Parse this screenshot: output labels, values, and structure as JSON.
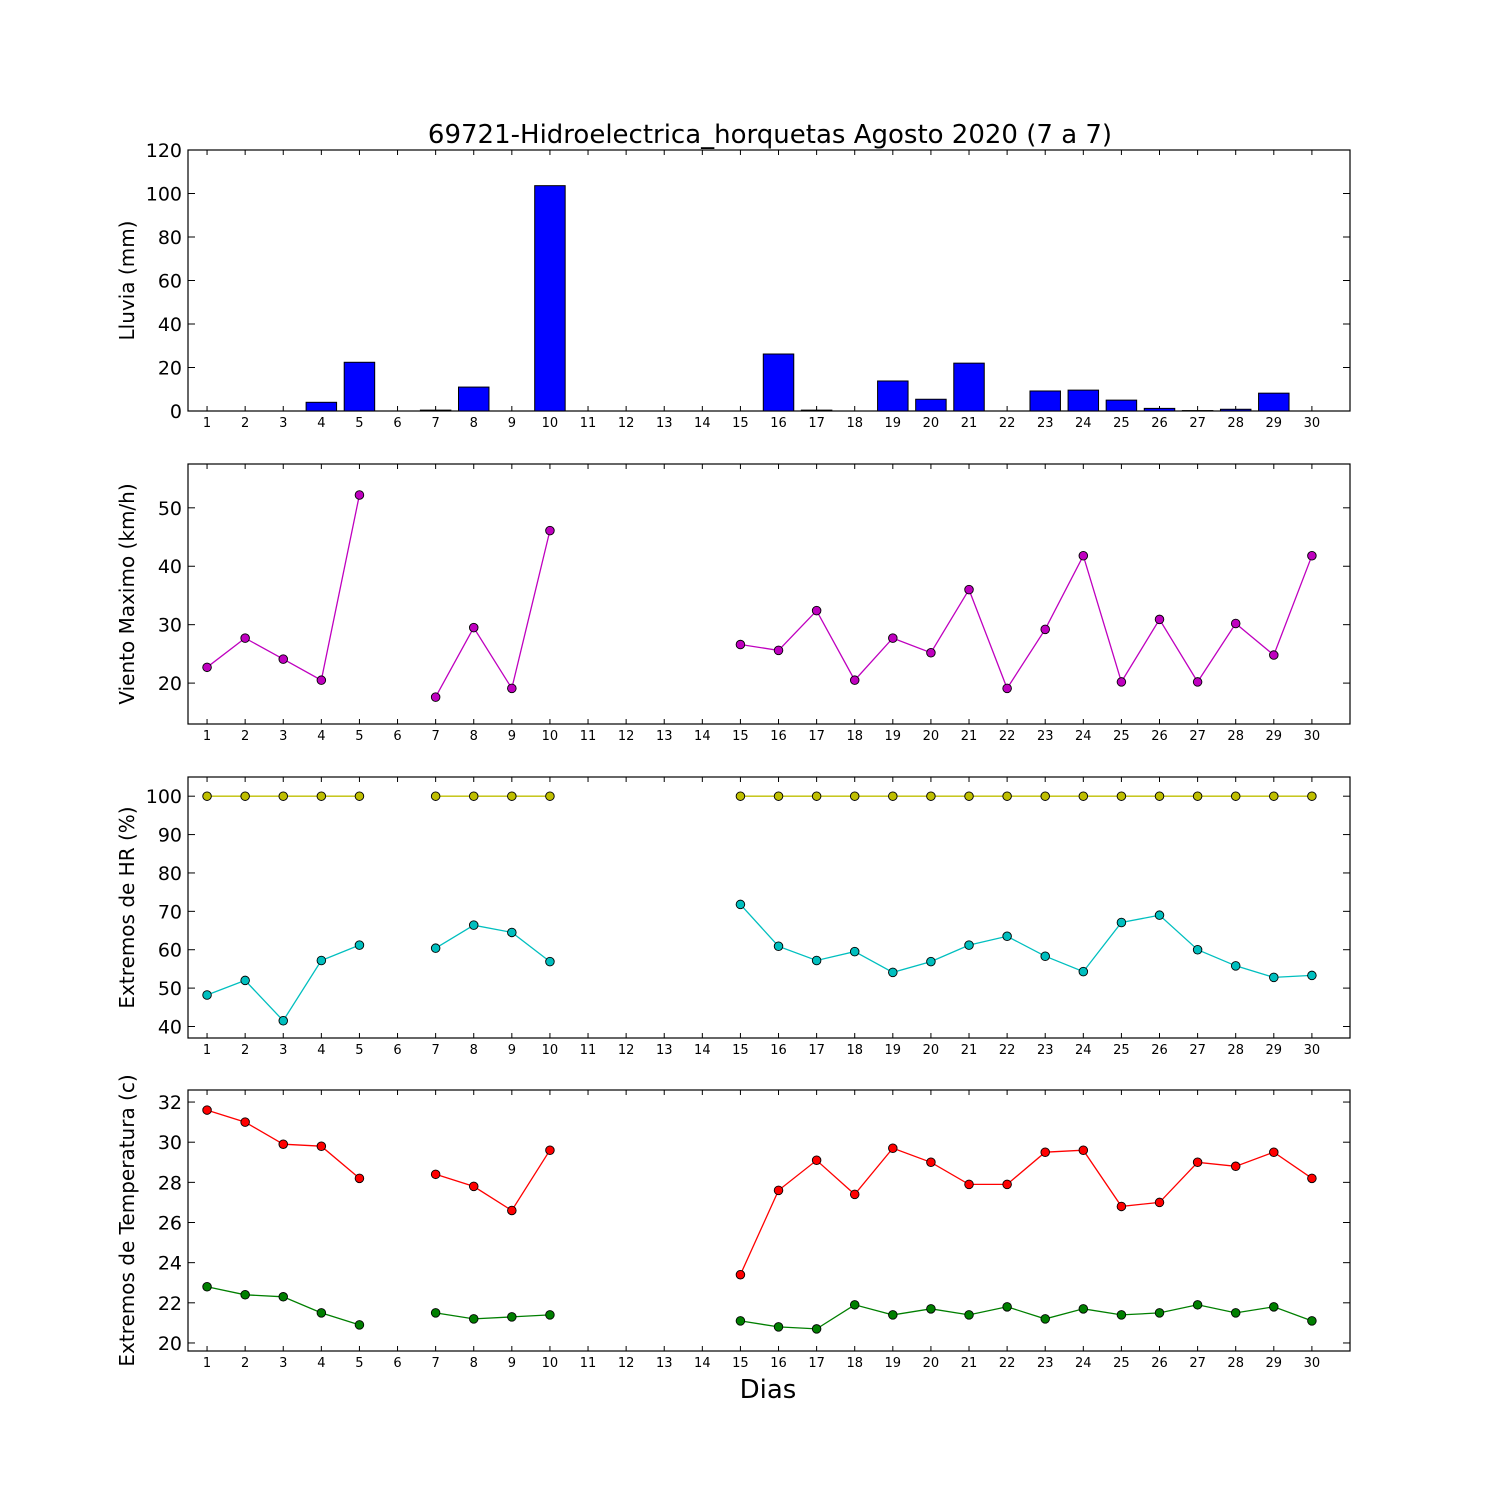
{
  "title": "69721-Hidroelectrica_horquetas Agosto 2020  (7 a 7)",
  "xlabel": "Dias",
  "x_ticks": [
    "1",
    "2",
    "3",
    "4",
    "5",
    "6",
    "7",
    "8",
    "9",
    "10",
    "11",
    "12",
    "13",
    "14",
    "15",
    "16",
    "17",
    "18",
    "19",
    "20",
    "21",
    "22",
    "23",
    "24",
    "25",
    "26",
    "27",
    "28",
    "29",
    "30"
  ],
  "chart_data": [
    {
      "type": "bar",
      "ylabel": "Lluvia (mm)",
      "ylim": [
        0,
        120
      ],
      "yticks": [
        0,
        20,
        40,
        60,
        80,
        100,
        120
      ],
      "color": "#0000ff",
      "categories": [
        1,
        2,
        3,
        4,
        5,
        6,
        7,
        8,
        9,
        10,
        11,
        12,
        13,
        14,
        15,
        16,
        17,
        18,
        19,
        20,
        21,
        22,
        23,
        24,
        25,
        26,
        27,
        28,
        29,
        30
      ],
      "values": [
        0,
        0,
        0,
        4,
        22.4,
        0,
        0.4,
        11,
        0,
        103.6,
        0,
        0,
        0,
        0,
        0,
        26.2,
        0.4,
        0,
        13.8,
        5.4,
        22,
        0,
        9.2,
        9.6,
        5,
        1.2,
        0.2,
        0.8,
        8.2,
        0
      ]
    },
    {
      "type": "line",
      "ylabel": "Viento Maximo (km/h)",
      "ylim": [
        13,
        57.5
      ],
      "yticks": [
        20,
        30,
        40,
        50
      ],
      "x": [
        1,
        2,
        3,
        4,
        5,
        6,
        7,
        8,
        9,
        10,
        11,
        12,
        13,
        14,
        15,
        16,
        17,
        18,
        19,
        20,
        21,
        22,
        23,
        24,
        25,
        26,
        27,
        28,
        29,
        30
      ],
      "series": [
        {
          "color": "#bf00bf",
          "values": [
            22.7,
            27.7,
            24.1,
            20.5,
            52.2,
            null,
            17.6,
            29.5,
            19.1,
            46.1,
            null,
            null,
            null,
            null,
            26.6,
            25.6,
            32.4,
            20.5,
            27.7,
            25.2,
            36,
            19.1,
            29.2,
            41.8,
            20.2,
            30.9,
            20.2,
            30.2,
            24.8,
            41.8
          ]
        }
      ]
    },
    {
      "type": "line",
      "ylabel": "Extremos de HR (%)",
      "ylim": [
        37,
        105
      ],
      "yticks": [
        40,
        50,
        60,
        70,
        80,
        90,
        100
      ],
      "x": [
        1,
        2,
        3,
        4,
        5,
        6,
        7,
        8,
        9,
        10,
        11,
        12,
        13,
        14,
        15,
        16,
        17,
        18,
        19,
        20,
        21,
        22,
        23,
        24,
        25,
        26,
        27,
        28,
        29,
        30
      ],
      "series": [
        {
          "color": "#bfbf00",
          "values": [
            100,
            100,
            100,
            100,
            100,
            null,
            100,
            100,
            100,
            100,
            null,
            null,
            null,
            null,
            100,
            100,
            100,
            100,
            100,
            100,
            100,
            100,
            100,
            100,
            100,
            100,
            100,
            100,
            100,
            100
          ]
        },
        {
          "color": "#00bfbf",
          "values": [
            48.2,
            52,
            41.5,
            57.2,
            61.2,
            null,
            60.4,
            66.4,
            64.5,
            56.9,
            null,
            null,
            null,
            null,
            71.8,
            60.9,
            57.2,
            59.5,
            54.1,
            56.9,
            61.2,
            63.5,
            58.3,
            54.3,
            67.1,
            69,
            60,
            55.8,
            52.8,
            53.3
          ]
        }
      ]
    },
    {
      "type": "line",
      "ylabel": "Extremos de Temperatura (c)",
      "ylim": [
        19.6,
        32.6
      ],
      "yticks": [
        20,
        22,
        24,
        26,
        28,
        30,
        32
      ],
      "x": [
        1,
        2,
        3,
        4,
        5,
        6,
        7,
        8,
        9,
        10,
        11,
        12,
        13,
        14,
        15,
        16,
        17,
        18,
        19,
        20,
        21,
        22,
        23,
        24,
        25,
        26,
        27,
        28,
        29,
        30
      ],
      "series": [
        {
          "color": "#ff0000",
          "values": [
            31.6,
            31,
            29.9,
            29.8,
            28.2,
            null,
            28.4,
            27.8,
            26.6,
            29.6,
            null,
            null,
            null,
            null,
            23.4,
            27.6,
            29.1,
            27.4,
            29.7,
            29,
            27.9,
            27.9,
            29.5,
            29.6,
            26.8,
            27,
            29,
            28.8,
            29.5,
            28.2
          ]
        },
        {
          "color": "#007f00",
          "values": [
            22.8,
            22.4,
            22.3,
            21.5,
            20.9,
            null,
            21.5,
            21.2,
            21.3,
            21.4,
            null,
            null,
            null,
            null,
            21.1,
            20.8,
            20.7,
            21.9,
            21.4,
            21.7,
            21.4,
            21.8,
            21.2,
            21.7,
            21.4,
            21.5,
            21.9,
            21.5,
            21.8,
            21.1
          ]
        }
      ]
    }
  ]
}
